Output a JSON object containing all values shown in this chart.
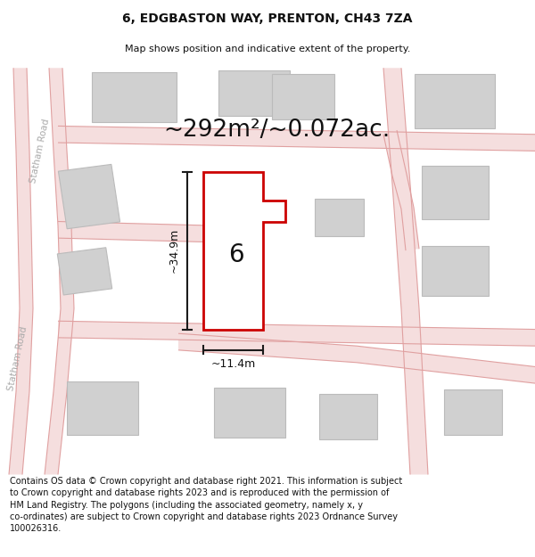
{
  "title_line1": "6, EDGBASTON WAY, PRENTON, CH43 7ZA",
  "title_line2": "Map shows position and indicative extent of the property.",
  "area_text": "~292m²/~0.072ac.",
  "label_number": "6",
  "dim_height_label": "~34.9m",
  "dim_width_label": "~11.4m",
  "footer_text": "Contains OS data © Crown copyright and database right 2021. This information is subject to Crown copyright and database rights 2023 and is reproduced with the permission of HM Land Registry. The polygons (including the associated geometry, namely x, y co-ordinates) are subject to Crown copyright and database rights 2023 Ordnance Survey 100026316.",
  "road_label_left1": "Statham Road",
  "road_label_left2": "Statham Road",
  "bg_color": "#ffffff",
  "map_bg_color": "#f7f7f7",
  "building_fill": "#d0d0d0",
  "building_edge": "#bbbbbb",
  "road_fill": "#f5dede",
  "road_edge": "#e0a0a0",
  "highlight_fill": "#ffffff",
  "highlight_edge": "#cc0000",
  "dim_color": "#1a1a1a",
  "title_color": "#111111",
  "road_label_color": "#aaaaaa",
  "footer_color": "#111111"
}
